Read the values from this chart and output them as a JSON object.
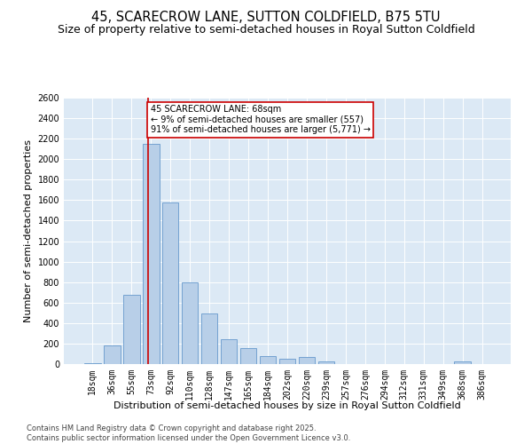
{
  "title": "45, SCARECROW LANE, SUTTON COLDFIELD, B75 5TU",
  "subtitle": "Size of property relative to semi-detached houses in Royal Sutton Coldfield",
  "xlabel": "Distribution of semi-detached houses by size in Royal Sutton Coldfield",
  "ylabel": "Number of semi-detached properties",
  "categories": [
    "18sqm",
    "36sqm",
    "55sqm",
    "73sqm",
    "92sqm",
    "110sqm",
    "128sqm",
    "147sqm",
    "165sqm",
    "184sqm",
    "202sqm",
    "220sqm",
    "239sqm",
    "257sqm",
    "276sqm",
    "294sqm",
    "312sqm",
    "331sqm",
    "349sqm",
    "368sqm",
    "386sqm"
  ],
  "values": [
    5,
    180,
    680,
    2150,
    1580,
    800,
    490,
    240,
    155,
    80,
    55,
    70,
    25,
    0,
    0,
    0,
    0,
    0,
    0,
    30,
    0
  ],
  "bar_color": "#b8cfe8",
  "bar_edge_color": "#6699cc",
  "vline_color": "#cc0000",
  "annotation_text": "45 SCARECROW LANE: 68sqm\n← 9% of semi-detached houses are smaller (557)\n91% of semi-detached houses are larger (5,771) →",
  "annotation_box_color": "#ffffff",
  "annotation_box_edge": "#cc0000",
  "ylim": [
    0,
    2600
  ],
  "yticks": [
    0,
    200,
    400,
    600,
    800,
    1000,
    1200,
    1400,
    1600,
    1800,
    2000,
    2200,
    2400,
    2600
  ],
  "plot_bg_color": "#dce9f5",
  "footer_text": "Contains HM Land Registry data © Crown copyright and database right 2025.\nContains public sector information licensed under the Open Government Licence v3.0.",
  "title_fontsize": 10.5,
  "subtitle_fontsize": 9,
  "tick_fontsize": 7,
  "label_fontsize": 8,
  "footer_fontsize": 6,
  "annot_fontsize": 7
}
